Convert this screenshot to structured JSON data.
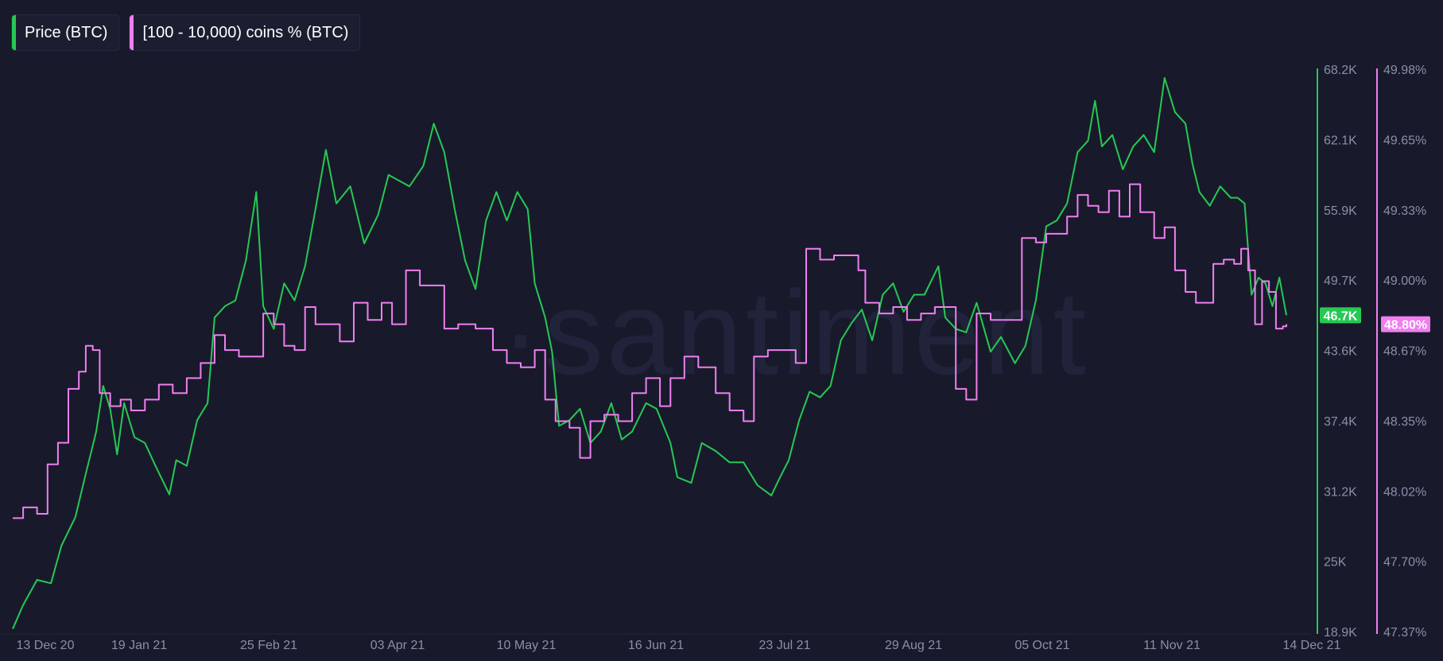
{
  "chart_data": {
    "type": "line",
    "watermark": "·santiment",
    "x_ticks": [
      "13 Dec 20",
      "19 Jan 21",
      "25 Feb 21",
      "03 Apr 21",
      "10 May 21",
      "16 Jun 21",
      "23 Jul 21",
      "29 Aug 21",
      "05 Oct 21",
      "11 Nov 21",
      "14 Dec 21"
    ],
    "x_range": [
      "2020-12-13",
      "2021-12-14"
    ],
    "series": [
      {
        "name": "Price (BTC)",
        "color": "#26c953",
        "axis": "right-1",
        "current_value_label": "46.7K",
        "ylim": [
          18900,
          68200
        ],
        "y_ticks": [
          "68.2K",
          "62.1K",
          "55.9K",
          "49.7K",
          "43.6K",
          "37.4K",
          "31.2K",
          "25K",
          "18.9K"
        ],
        "points": [
          [
            "2020-12-13",
            19200
          ],
          [
            "2020-12-16",
            21300
          ],
          [
            "2020-12-20",
            23500
          ],
          [
            "2020-12-24",
            23200
          ],
          [
            "2020-12-27",
            26500
          ],
          [
            "2020-12-31",
            29000
          ],
          [
            "2021-01-03",
            32800
          ],
          [
            "2021-01-06",
            36500
          ],
          [
            "2021-01-08",
            40500
          ],
          [
            "2021-01-10",
            38500
          ],
          [
            "2021-01-12",
            34500
          ],
          [
            "2021-01-14",
            39000
          ],
          [
            "2021-01-17",
            36000
          ],
          [
            "2021-01-20",
            35500
          ],
          [
            "2021-01-23",
            33500
          ],
          [
            "2021-01-27",
            31000
          ],
          [
            "2021-01-29",
            34000
          ],
          [
            "2021-02-01",
            33500
          ],
          [
            "2021-02-04",
            37500
          ],
          [
            "2021-02-07",
            39000
          ],
          [
            "2021-02-09",
            46500
          ],
          [
            "2021-02-12",
            47500
          ],
          [
            "2021-02-15",
            48000
          ],
          [
            "2021-02-18",
            51500
          ],
          [
            "2021-02-21",
            57500
          ],
          [
            "2021-02-23",
            47500
          ],
          [
            "2021-02-26",
            45500
          ],
          [
            "2021-03-01",
            49500
          ],
          [
            "2021-03-04",
            48000
          ],
          [
            "2021-03-07",
            51000
          ],
          [
            "2021-03-10",
            56000
          ],
          [
            "2021-03-13",
            61200
          ],
          [
            "2021-03-16",
            56500
          ],
          [
            "2021-03-20",
            58000
          ],
          [
            "2021-03-24",
            53000
          ],
          [
            "2021-03-28",
            55500
          ],
          [
            "2021-03-31",
            59000
          ],
          [
            "2021-04-03",
            58500
          ],
          [
            "2021-04-06",
            58000
          ],
          [
            "2021-04-10",
            59800
          ],
          [
            "2021-04-13",
            63500
          ],
          [
            "2021-04-16",
            61000
          ],
          [
            "2021-04-19",
            56000
          ],
          [
            "2021-04-22",
            51500
          ],
          [
            "2021-04-25",
            49000
          ],
          [
            "2021-04-28",
            55000
          ],
          [
            "2021-05-01",
            57500
          ],
          [
            "2021-05-04",
            55000
          ],
          [
            "2021-05-07",
            57500
          ],
          [
            "2021-05-10",
            56000
          ],
          [
            "2021-05-12",
            49500
          ],
          [
            "2021-05-15",
            46500
          ],
          [
            "2021-05-17",
            43500
          ],
          [
            "2021-05-19",
            37000
          ],
          [
            "2021-05-22",
            37500
          ],
          [
            "2021-05-25",
            38500
          ],
          [
            "2021-05-28",
            35500
          ],
          [
            "2021-05-31",
            36500
          ],
          [
            "2021-06-03",
            39000
          ],
          [
            "2021-06-06",
            35800
          ],
          [
            "2021-06-09",
            36500
          ],
          [
            "2021-06-13",
            39000
          ],
          [
            "2021-06-16",
            38500
          ],
          [
            "2021-06-20",
            35500
          ],
          [
            "2021-06-22",
            32500
          ],
          [
            "2021-06-26",
            32000
          ],
          [
            "2021-06-29",
            35500
          ],
          [
            "2021-07-03",
            34800
          ],
          [
            "2021-07-07",
            33800
          ],
          [
            "2021-07-11",
            33800
          ],
          [
            "2021-07-15",
            31800
          ],
          [
            "2021-07-19",
            30900
          ],
          [
            "2021-07-21",
            32200
          ],
          [
            "2021-07-24",
            34000
          ],
          [
            "2021-07-27",
            37500
          ],
          [
            "2021-07-30",
            40000
          ],
          [
            "2021-08-02",
            39500
          ],
          [
            "2021-08-05",
            40500
          ],
          [
            "2021-08-08",
            44500
          ],
          [
            "2021-08-11",
            46000
          ],
          [
            "2021-08-14",
            47200
          ],
          [
            "2021-08-17",
            44500
          ],
          [
            "2021-08-20",
            48500
          ],
          [
            "2021-08-23",
            49500
          ],
          [
            "2021-08-26",
            47000
          ],
          [
            "2021-08-29",
            48500
          ],
          [
            "2021-09-01",
            48500
          ],
          [
            "2021-09-05",
            51000
          ],
          [
            "2021-09-07",
            46500
          ],
          [
            "2021-09-10",
            45500
          ],
          [
            "2021-09-13",
            45200
          ],
          [
            "2021-09-16",
            47800
          ],
          [
            "2021-09-20",
            43500
          ],
          [
            "2021-09-23",
            44800
          ],
          [
            "2021-09-27",
            42500
          ],
          [
            "2021-09-30",
            44000
          ],
          [
            "2021-10-03",
            48000
          ],
          [
            "2021-10-06",
            54500
          ],
          [
            "2021-10-09",
            55000
          ],
          [
            "2021-10-12",
            56500
          ],
          [
            "2021-10-15",
            61000
          ],
          [
            "2021-10-18",
            62000
          ],
          [
            "2021-10-20",
            65500
          ],
          [
            "2021-10-22",
            61500
          ],
          [
            "2021-10-25",
            62500
          ],
          [
            "2021-10-28",
            59500
          ],
          [
            "2021-10-31",
            61500
          ],
          [
            "2021-11-03",
            62500
          ],
          [
            "2021-11-06",
            61000
          ],
          [
            "2021-11-09",
            67500
          ],
          [
            "2021-11-12",
            64500
          ],
          [
            "2021-11-15",
            63500
          ],
          [
            "2021-11-17",
            60000
          ],
          [
            "2021-11-19",
            57500
          ],
          [
            "2021-11-22",
            56300
          ],
          [
            "2021-11-25",
            58000
          ],
          [
            "2021-11-28",
            57000
          ],
          [
            "2021-11-30",
            57000
          ],
          [
            "2021-12-02",
            56500
          ],
          [
            "2021-12-04",
            48500
          ],
          [
            "2021-12-06",
            50000
          ],
          [
            "2021-12-08",
            49500
          ],
          [
            "2021-12-10",
            47500
          ],
          [
            "2021-12-12",
            50000
          ],
          [
            "2021-12-14",
            46700
          ]
        ]
      },
      {
        "name": "[100 - 10,000) coins % (BTC)",
        "color": "#f07ef0",
        "axis": "right-2",
        "current_value_label": "48.80%",
        "ylim": [
          47.37,
          49.98
        ],
        "y_ticks": [
          "49.98%",
          "49.65%",
          "49.33%",
          "49.00%",
          "48.67%",
          "48.35%",
          "48.02%",
          "47.70%",
          "47.37%"
        ],
        "points": [
          [
            "2020-12-13",
            47.9
          ],
          [
            "2020-12-16",
            47.95
          ],
          [
            "2020-12-20",
            47.92
          ],
          [
            "2020-12-23",
            48.15
          ],
          [
            "2020-12-26",
            48.25
          ],
          [
            "2020-12-29",
            48.5
          ],
          [
            "2021-01-01",
            48.58
          ],
          [
            "2021-01-03",
            48.7
          ],
          [
            "2021-01-05",
            48.68
          ],
          [
            "2021-01-07",
            48.48
          ],
          [
            "2021-01-10",
            48.42
          ],
          [
            "2021-01-13",
            48.45
          ],
          [
            "2021-01-16",
            48.4
          ],
          [
            "2021-01-20",
            48.45
          ],
          [
            "2021-01-24",
            48.52
          ],
          [
            "2021-01-28",
            48.48
          ],
          [
            "2021-02-01",
            48.55
          ],
          [
            "2021-02-05",
            48.62
          ],
          [
            "2021-02-09",
            48.75
          ],
          [
            "2021-02-12",
            48.68
          ],
          [
            "2021-02-16",
            48.65
          ],
          [
            "2021-02-20",
            48.65
          ],
          [
            "2021-02-23",
            48.85
          ],
          [
            "2021-02-26",
            48.8
          ],
          [
            "2021-03-01",
            48.7
          ],
          [
            "2021-03-04",
            48.68
          ],
          [
            "2021-03-07",
            48.88
          ],
          [
            "2021-03-10",
            48.8
          ],
          [
            "2021-03-13",
            48.8
          ],
          [
            "2021-03-17",
            48.72
          ],
          [
            "2021-03-21",
            48.9
          ],
          [
            "2021-03-25",
            48.82
          ],
          [
            "2021-03-29",
            48.9
          ],
          [
            "2021-04-01",
            48.8
          ],
          [
            "2021-04-05",
            49.05
          ],
          [
            "2021-04-09",
            48.98
          ],
          [
            "2021-04-13",
            48.98
          ],
          [
            "2021-04-16",
            48.78
          ],
          [
            "2021-04-20",
            48.8
          ],
          [
            "2021-04-25",
            48.78
          ],
          [
            "2021-04-30",
            48.68
          ],
          [
            "2021-05-04",
            48.62
          ],
          [
            "2021-05-08",
            48.6
          ],
          [
            "2021-05-12",
            48.68
          ],
          [
            "2021-05-15",
            48.45
          ],
          [
            "2021-05-18",
            48.35
          ],
          [
            "2021-05-22",
            48.32
          ],
          [
            "2021-05-25",
            48.18
          ],
          [
            "2021-05-28",
            48.35
          ],
          [
            "2021-06-01",
            48.38
          ],
          [
            "2021-06-05",
            48.35
          ],
          [
            "2021-06-09",
            48.48
          ],
          [
            "2021-06-13",
            48.55
          ],
          [
            "2021-06-17",
            48.42
          ],
          [
            "2021-06-20",
            48.55
          ],
          [
            "2021-06-24",
            48.65
          ],
          [
            "2021-06-28",
            48.6
          ],
          [
            "2021-07-03",
            48.48
          ],
          [
            "2021-07-07",
            48.4
          ],
          [
            "2021-07-11",
            48.35
          ],
          [
            "2021-07-14",
            48.65
          ],
          [
            "2021-07-18",
            48.68
          ],
          [
            "2021-07-22",
            48.68
          ],
          [
            "2021-07-26",
            48.62
          ],
          [
            "2021-07-29",
            49.15
          ],
          [
            "2021-08-02",
            49.1
          ],
          [
            "2021-08-06",
            49.12
          ],
          [
            "2021-08-10",
            49.12
          ],
          [
            "2021-08-13",
            49.05
          ],
          [
            "2021-08-15",
            48.9
          ],
          [
            "2021-08-19",
            48.85
          ],
          [
            "2021-08-23",
            48.88
          ],
          [
            "2021-08-27",
            48.82
          ],
          [
            "2021-08-31",
            48.85
          ],
          [
            "2021-09-04",
            48.88
          ],
          [
            "2021-09-08",
            48.88
          ],
          [
            "2021-09-10",
            48.5
          ],
          [
            "2021-09-13",
            48.45
          ],
          [
            "2021-09-16",
            48.85
          ],
          [
            "2021-09-20",
            48.82
          ],
          [
            "2021-09-24",
            48.82
          ],
          [
            "2021-09-27",
            48.82
          ],
          [
            "2021-09-29",
            49.2
          ],
          [
            "2021-10-03",
            49.18
          ],
          [
            "2021-10-06",
            49.22
          ],
          [
            "2021-10-09",
            49.22
          ],
          [
            "2021-10-12",
            49.3
          ],
          [
            "2021-10-15",
            49.4
          ],
          [
            "2021-10-18",
            49.35
          ],
          [
            "2021-10-21",
            49.32
          ],
          [
            "2021-10-24",
            49.42
          ],
          [
            "2021-10-27",
            49.3
          ],
          [
            "2021-10-30",
            49.45
          ],
          [
            "2021-11-02",
            49.32
          ],
          [
            "2021-11-06",
            49.2
          ],
          [
            "2021-11-09",
            49.25
          ],
          [
            "2021-11-12",
            49.05
          ],
          [
            "2021-11-15",
            48.95
          ],
          [
            "2021-11-18",
            48.9
          ],
          [
            "2021-11-21",
            48.9
          ],
          [
            "2021-11-23",
            49.08
          ],
          [
            "2021-11-26",
            49.1
          ],
          [
            "2021-11-29",
            49.08
          ],
          [
            "2021-12-01",
            49.15
          ],
          [
            "2021-12-03",
            49.05
          ],
          [
            "2021-12-05",
            48.8
          ],
          [
            "2021-12-07",
            49.0
          ],
          [
            "2021-12-09",
            48.95
          ],
          [
            "2021-12-11",
            48.78
          ],
          [
            "2021-12-13",
            48.79
          ],
          [
            "2021-12-14",
            48.8
          ]
        ]
      }
    ]
  }
}
